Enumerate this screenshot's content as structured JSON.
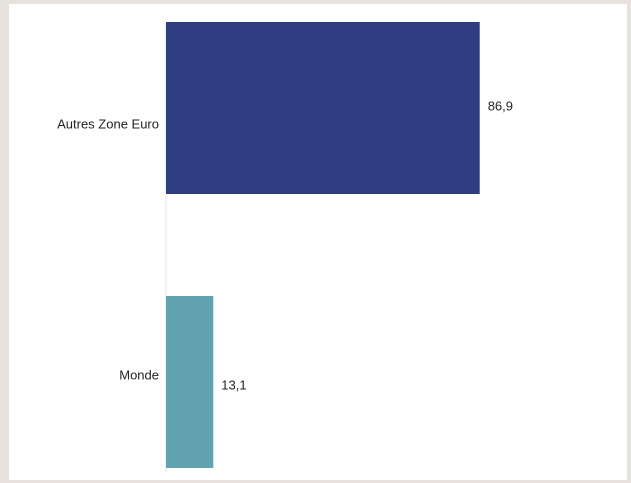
{
  "chart_data": {
    "type": "bar",
    "orientation": "horizontal",
    "categories": [
      "Autres Zone Euro",
      "Monde"
    ],
    "values": [
      86.9,
      13.1
    ],
    "value_labels": [
      "86,9",
      "13,1"
    ],
    "colors": [
      "#2e3d80",
      "#62a3b0"
    ],
    "title": "",
    "xlabel": "",
    "ylabel": "",
    "xlim": [
      0,
      100
    ],
    "grid": false,
    "legend": "none"
  }
}
